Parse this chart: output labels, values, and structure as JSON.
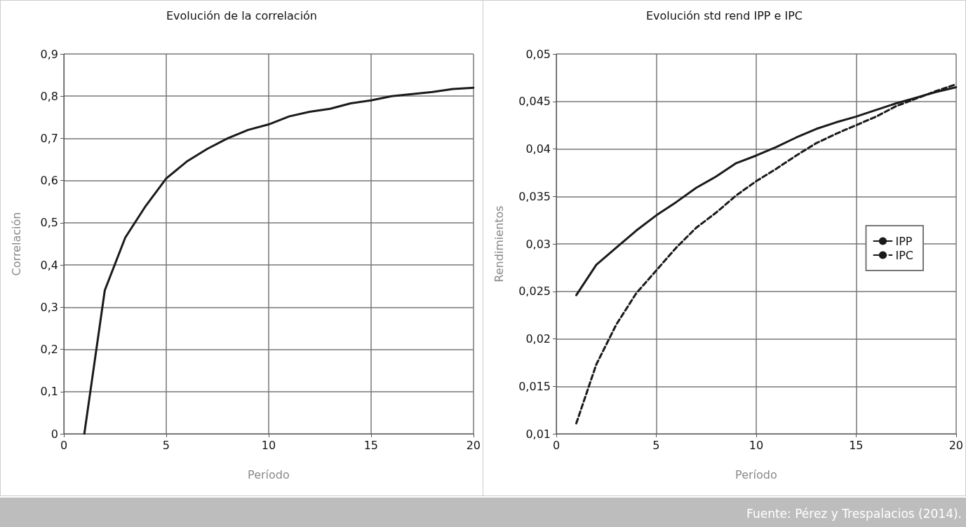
{
  "chart_data": [
    {
      "type": "line",
      "title": "Evolución de la correlación",
      "xlabel": "Período",
      "ylabel": "Correlación",
      "x": [
        1,
        2,
        3,
        4,
        5,
        6,
        7,
        8,
        9,
        10,
        11,
        12,
        13,
        14,
        15,
        16,
        17,
        18,
        19,
        20
      ],
      "series": [
        {
          "color": "#1a1a1a",
          "values": [
            0,
            0.34,
            0.465,
            0.54,
            0.605,
            0.645,
            0.675,
            0.7,
            0.72,
            0.733,
            0.752,
            0.763,
            0.77,
            0.783,
            0.79,
            0.8,
            0.805,
            0.81,
            0.817,
            0.82
          ]
        }
      ],
      "xlim": [
        0,
        20
      ],
      "xticks": [
        0,
        5,
        10,
        15,
        20
      ],
      "ylim": [
        0,
        0.9
      ],
      "yticks": [
        0,
        {
          "value": 0.1,
          "label": "0,1"
        },
        {
          "value": 0.2,
          "label": "0,2"
        },
        {
          "value": 0.3,
          "label": "0,3"
        },
        {
          "value": 0.4,
          "label": "0,4"
        },
        {
          "value": 0.5,
          "label": "0,5"
        },
        {
          "value": 0.6,
          "label": "0,6"
        },
        {
          "value": 0.7,
          "label": "0,7"
        },
        {
          "value": 0.8,
          "label": "0,8"
        },
        {
          "value": 0.9,
          "label": "0,9"
        }
      ],
      "grid": true,
      "legend": false,
      "marker": "none"
    },
    {
      "type": "line",
      "title": "Evolución std rend IPP e IPC",
      "xlabel": "Período",
      "ylabel": "Rendimientos",
      "x": [
        1,
        2,
        3,
        4,
        5,
        6,
        7,
        8,
        9,
        10,
        11,
        12,
        13,
        14,
        15,
        16,
        17,
        18,
        19,
        20
      ],
      "series": [
        {
          "name": "IPP",
          "color": "#1a1a1a",
          "line_style": "solid",
          "values": [
            0.0246,
            0.0278,
            0.0296,
            0.0314,
            0.033,
            0.0344,
            0.0359,
            0.0371,
            0.0385,
            0.0393,
            0.0402,
            0.0412,
            0.0421,
            0.0428,
            0.0434,
            0.0441,
            0.0448,
            0.0454,
            0.046,
            0.0465
          ]
        },
        {
          "name": "IPC",
          "color": "#1a1a1a",
          "line_style": "dashed",
          "values": [
            0.0111,
            0.0173,
            0.0215,
            0.0248,
            0.0272,
            0.0296,
            0.0317,
            0.0333,
            0.0351,
            0.0366,
            0.0379,
            0.0393,
            0.0406,
            0.0416,
            0.0425,
            0.0434,
            0.0445,
            0.0453,
            0.0461,
            0.0468
          ]
        }
      ],
      "xlim": [
        0,
        20
      ],
      "xticks": [
        0,
        5,
        10,
        15,
        20
      ],
      "ylim": [
        0.01,
        0.05
      ],
      "yticks": [
        {
          "value": 0.01,
          "label": "0,01"
        },
        {
          "value": 0.015,
          "label": "0,015"
        },
        {
          "value": 0.02,
          "label": "0,02"
        },
        {
          "value": 0.025,
          "label": "0,025"
        },
        {
          "value": 0.03,
          "label": "0,03"
        },
        {
          "value": 0.035,
          "label": "0,035"
        },
        {
          "value": 0.04,
          "label": "0,04"
        },
        {
          "value": 0.045,
          "label": "0,045"
        },
        {
          "value": 0.05,
          "label": "0,05"
        }
      ],
      "grid": true,
      "legend": "right",
      "marker": "none",
      "annotations": [
        "Fuente: Pérez y Trespalacios (2014)."
      ]
    }
  ]
}
